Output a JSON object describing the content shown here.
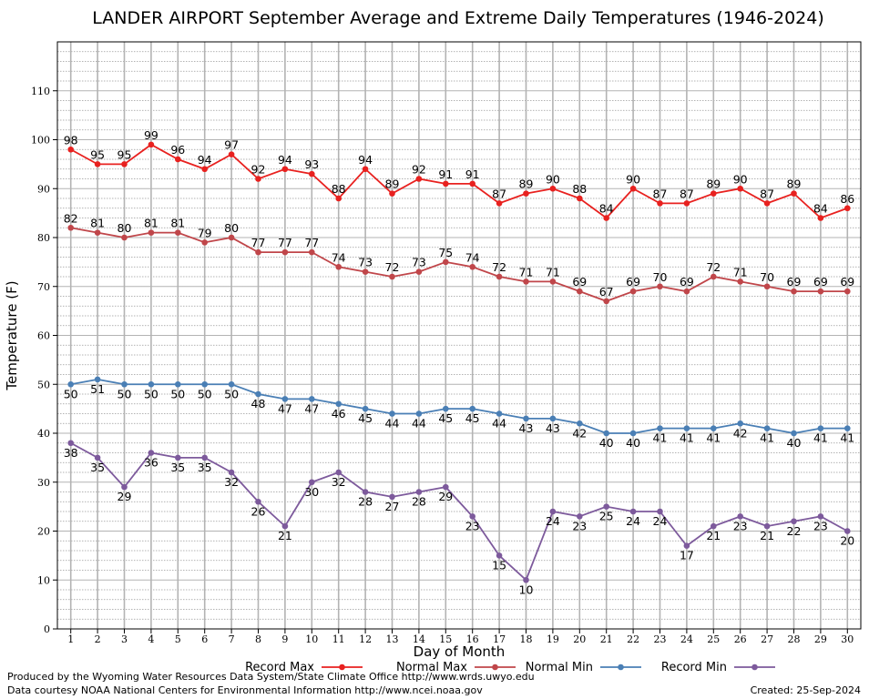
{
  "chart_data": {
    "type": "line",
    "title": "LANDER AIRPORT September Average and Extreme Daily Temperatures (1946-2024)",
    "xlabel": "Day of Month",
    "ylabel": "Temperature (F)",
    "xlim": [
      0.5,
      30.5
    ],
    "ylim": [
      0,
      120
    ],
    "yticks": [
      0,
      10,
      20,
      30,
      40,
      50,
      60,
      70,
      80,
      90,
      100,
      110
    ],
    "x": [
      1,
      2,
      3,
      4,
      5,
      6,
      7,
      8,
      9,
      10,
      11,
      12,
      13,
      14,
      15,
      16,
      17,
      18,
      19,
      20,
      21,
      22,
      23,
      24,
      25,
      26,
      27,
      28,
      29,
      30
    ],
    "grid": true,
    "legend_position": "bottom",
    "series": [
      {
        "name": "Record Max",
        "color": "#e8211f",
        "values": [
          98,
          95,
          95,
          99,
          96,
          94,
          97,
          92,
          94,
          93,
          88,
          94,
          89,
          92,
          91,
          91,
          87,
          89,
          90,
          88,
          84,
          90,
          87,
          87,
          89,
          90,
          87,
          89,
          84,
          86
        ],
        "label_position": "above"
      },
      {
        "name": "Normal Max",
        "color": "#c0464a",
        "values": [
          82,
          81,
          80,
          81,
          81,
          79,
          80,
          77,
          77,
          77,
          74,
          73,
          72,
          73,
          75,
          74,
          72,
          71,
          71,
          69,
          67,
          69,
          70,
          69,
          72,
          71,
          70,
          69,
          69,
          69
        ],
        "label_position": "above"
      },
      {
        "name": "Normal Min",
        "color": "#4a7fb5",
        "values": [
          50,
          51,
          50,
          50,
          50,
          50,
          50,
          48,
          47,
          47,
          46,
          45,
          44,
          44,
          45,
          45,
          44,
          43,
          43,
          42,
          40,
          40,
          41,
          41,
          41,
          42,
          41,
          40,
          41,
          41
        ],
        "label_position": "below"
      },
      {
        "name": "Record Min",
        "color": "#7d5a9c",
        "values": [
          38,
          35,
          29,
          36,
          35,
          35,
          32,
          26,
          21,
          30,
          32,
          28,
          27,
          28,
          29,
          23,
          15,
          10,
          24,
          23,
          25,
          24,
          24,
          17,
          21,
          23,
          21,
          22,
          23,
          20
        ],
        "label_position": "below"
      }
    ]
  },
  "footer": {
    "line1": "Produced by the Wyoming Water Resources Data System/State Climate Office http://www.wrds.uwyo.edu",
    "line2": "Data courtesy NOAA National Centers for Environmental Information http://www.ncei.noaa.gov",
    "created": "Created:  25-Sep-2024"
  }
}
